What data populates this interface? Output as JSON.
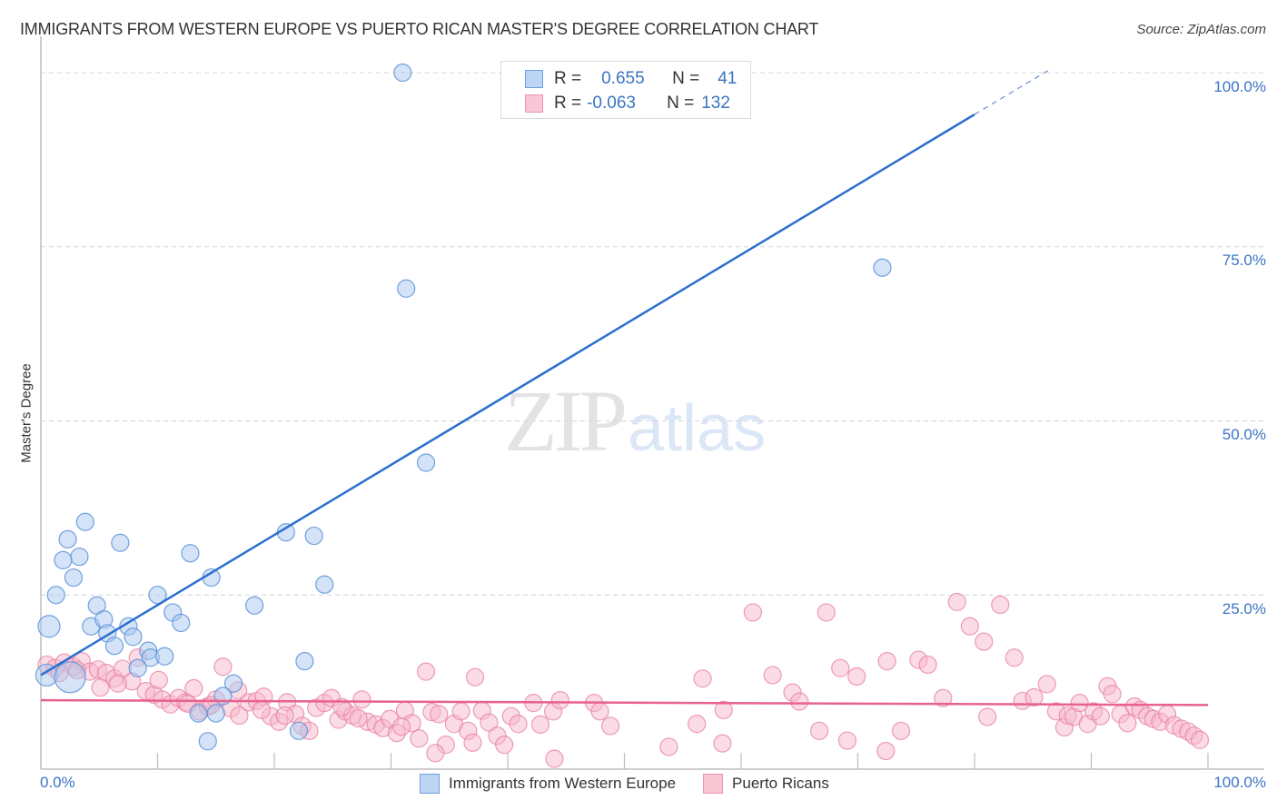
{
  "header": {
    "title": "IMMIGRANTS FROM WESTERN EUROPE VS PUERTO RICAN MASTER'S DEGREE CORRELATION CHART",
    "source": "Source: ZipAtlas.com"
  },
  "watermark": {
    "zip": "ZIP",
    "atlas": "atlas"
  },
  "legend": {
    "series1": {
      "r_label": "R =",
      "r_value": "0.655",
      "n_label": "N =",
      "n_value": "41"
    },
    "series2": {
      "r_label": "R =",
      "r_value": "-0.063",
      "n_label": "N =",
      "n_value": "132"
    }
  },
  "axes": {
    "ylabel": "Master's Degree",
    "yticks": [
      "100.0%",
      "75.0%",
      "50.0%",
      "25.0%"
    ],
    "xtick_left": "0.0%",
    "xtick_right": "100.0%"
  },
  "bottom_legend": {
    "series1": "Immigrants from Western Europe",
    "series2": "Puerto Ricans"
  },
  "colors": {
    "blue_fill": "#a9c8ef",
    "blue_stroke": "#5b93d8",
    "blue_line": "#2a6fd0",
    "pink_fill": "#f7b8cb",
    "pink_stroke": "#e77fa0",
    "pink_line": "#e8628f",
    "tick_text": "#3a75c4"
  },
  "chart_data": {
    "type": "scatter",
    "title": "IMMIGRANTS FROM WESTERN EUROPE VS PUERTO RICAN MASTER'S DEGREE CORRELATION CHART",
    "xlabel": "",
    "ylabel": "Master's Degree",
    "xlim": [
      0,
      100
    ],
    "ylim": [
      0,
      100
    ],
    "x_ticks": [
      "0.0%",
      "100.0%"
    ],
    "y_ticks": [
      "25.0%",
      "50.0%",
      "75.0%",
      "100.0%"
    ],
    "grid": true,
    "legend_position": "top-center",
    "series": [
      {
        "name": "Immigrants from Western Europe",
        "color": "#a9c8ef",
        "R": 0.655,
        "N": 41,
        "trendline": {
          "x": [
            0,
            80
          ],
          "y": [
            13.5,
            94
          ],
          "dashed_extension": {
            "x": [
              80,
              86.5
            ],
            "y": [
              94,
              100.5
            ]
          }
        },
        "points": [
          [
            31,
            100
          ],
          [
            31.3,
            69
          ],
          [
            72.1,
            72
          ],
          [
            33,
            44
          ],
          [
            3.8,
            35.5
          ],
          [
            2.3,
            33
          ],
          [
            6.8,
            32.5
          ],
          [
            3.3,
            30.5
          ],
          [
            1.9,
            30
          ],
          [
            12.8,
            31
          ],
          [
            21,
            34
          ],
          [
            23.4,
            33.5
          ],
          [
            2.8,
            27.5
          ],
          [
            14.6,
            27.5
          ],
          [
            24.3,
            26.5
          ],
          [
            1.3,
            25
          ],
          [
            4.8,
            23.5
          ],
          [
            10,
            25
          ],
          [
            18.3,
            23.5
          ],
          [
            0.7,
            20.5
          ],
          [
            4.3,
            20.5
          ],
          [
            5.4,
            21.5
          ],
          [
            7.5,
            20.5
          ],
          [
            11.3,
            22.5
          ],
          [
            12,
            21
          ],
          [
            5.7,
            19.5
          ],
          [
            7.9,
            19
          ],
          [
            6.3,
            17.7
          ],
          [
            9.2,
            17
          ],
          [
            9.4,
            16
          ],
          [
            10.6,
            16.2
          ],
          [
            22.6,
            15.5
          ],
          [
            8.3,
            14.5
          ],
          [
            0.5,
            13.5
          ],
          [
            16.5,
            12.3
          ],
          [
            15.6,
            10.5
          ],
          [
            13.5,
            8
          ],
          [
            15,
            8
          ],
          [
            14.3,
            4
          ],
          [
            22.1,
            5.5
          ],
          [
            2.5,
            13.2
          ]
        ]
      },
      {
        "name": "Puerto Ricans",
        "color": "#f7b8cb",
        "R": -0.063,
        "N": 132,
        "trendline": {
          "x": [
            0,
            100
          ],
          "y": [
            9.9,
            9.2
          ]
        },
        "points": [
          [
            0.5,
            15
          ],
          [
            1.2,
            14.5
          ],
          [
            2,
            15.3
          ],
          [
            2.8,
            14.7
          ],
          [
            3.5,
            15.5
          ],
          [
            4.2,
            14
          ],
          [
            4.9,
            14.3
          ],
          [
            5.6,
            13.8
          ],
          [
            6.3,
            13
          ],
          [
            7,
            14.4
          ],
          [
            7.8,
            12.6
          ],
          [
            8.3,
            16
          ],
          [
            9,
            11.2
          ],
          [
            9.7,
            10.7
          ],
          [
            10.4,
            10
          ],
          [
            11.1,
            9.3
          ],
          [
            11.8,
            10.2
          ],
          [
            12.4,
            9.6
          ],
          [
            13.1,
            11.6
          ],
          [
            13.6,
            8.3
          ],
          [
            14.3,
            9
          ],
          [
            15,
            10
          ],
          [
            15.6,
            14.7
          ],
          [
            16.3,
            8.7
          ],
          [
            17,
            7.7
          ],
          [
            17.8,
            9.6
          ],
          [
            18.5,
            9.8
          ],
          [
            19.1,
            10.4
          ],
          [
            19.7,
            7.6
          ],
          [
            20.4,
            6.8
          ],
          [
            21.1,
            9.6
          ],
          [
            21.8,
            7.9
          ],
          [
            22.4,
            6.2
          ],
          [
            23,
            5.5
          ],
          [
            23.6,
            8.8
          ],
          [
            24.3,
            9.5
          ],
          [
            24.9,
            10.2
          ],
          [
            25.5,
            7.1
          ],
          [
            26.1,
            8.3
          ],
          [
            26.7,
            7.7
          ],
          [
            27.5,
            10
          ],
          [
            28,
            6.8
          ],
          [
            28.7,
            6.4
          ],
          [
            29.3,
            5.9
          ],
          [
            29.9,
            7.2
          ],
          [
            30.5,
            5.2
          ],
          [
            31.2,
            8.4
          ],
          [
            31.8,
            6.6
          ],
          [
            32.4,
            4.4
          ],
          [
            33,
            14
          ],
          [
            33.5,
            8.2
          ],
          [
            34.1,
            7.9
          ],
          [
            34.7,
            3.5
          ],
          [
            35.4,
            6.5
          ],
          [
            36,
            8.3
          ],
          [
            36.6,
            5.5
          ],
          [
            37.2,
            13.2
          ],
          [
            37.8,
            8.4
          ],
          [
            38.4,
            6.7
          ],
          [
            39.1,
            4.8
          ],
          [
            39.7,
            3.5
          ],
          [
            40.3,
            7.6
          ],
          [
            40.9,
            6.5
          ],
          [
            42.2,
            9.5
          ],
          [
            42.8,
            6.4
          ],
          [
            43.9,
            8.3
          ],
          [
            44.5,
            9.9
          ],
          [
            47.4,
            9.5
          ],
          [
            47.9,
            8.3
          ],
          [
            48.8,
            6.2
          ],
          [
            56.2,
            6.5
          ],
          [
            56.7,
            13
          ],
          [
            58.5,
            8.5
          ],
          [
            61,
            22.5
          ],
          [
            62.7,
            13.5
          ],
          [
            64.4,
            11
          ],
          [
            65,
            9.7
          ],
          [
            66.7,
            5.5
          ],
          [
            67.3,
            22.5
          ],
          [
            68.5,
            14.5
          ],
          [
            69.9,
            13.3
          ],
          [
            72.5,
            15.5
          ],
          [
            73.7,
            5.5
          ],
          [
            75.2,
            15.7
          ],
          [
            76,
            15
          ],
          [
            77.3,
            10.2
          ],
          [
            78.5,
            24
          ],
          [
            79.6,
            20.5
          ],
          [
            80.8,
            18.3
          ],
          [
            82.2,
            23.6
          ],
          [
            83.4,
            16
          ],
          [
            84.1,
            9.8
          ],
          [
            85.1,
            10.3
          ],
          [
            86.2,
            12.2
          ],
          [
            87,
            8.3
          ],
          [
            87.7,
            6
          ],
          [
            88,
            7.7
          ],
          [
            88.5,
            7.5
          ],
          [
            89,
            9.5
          ],
          [
            89.7,
            6.5
          ],
          [
            90.2,
            8.3
          ],
          [
            90.8,
            7.6
          ],
          [
            91.4,
            11.9
          ],
          [
            91.8,
            10.8
          ],
          [
            92.5,
            7.9
          ],
          [
            93.1,
            6.6
          ],
          [
            93.7,
            9
          ],
          [
            94.2,
            8.5
          ],
          [
            94.8,
            7.6
          ],
          [
            95.3,
            7.2
          ],
          [
            95.9,
            6.8
          ],
          [
            96.5,
            7.9
          ],
          [
            97.1,
            6.3
          ],
          [
            97.7,
            5.8
          ],
          [
            98.3,
            5.4
          ],
          [
            98.8,
            4.8
          ],
          [
            99.3,
            4.2
          ],
          [
            1.6,
            13.8
          ],
          [
            3.1,
            14.2
          ],
          [
            5.1,
            11.7
          ],
          [
            6.6,
            12.3
          ],
          [
            10.1,
            12.8
          ],
          [
            12.6,
            9.4
          ],
          [
            14.6,
            9.2
          ],
          [
            16.9,
            11.3
          ],
          [
            18.9,
            8.5
          ],
          [
            20.9,
            7.7
          ],
          [
            25.8,
            8.9
          ],
          [
            27.2,
            7.3
          ],
          [
            30.9,
            6.1
          ],
          [
            33.8,
            2.3
          ],
          [
            37,
            3.8
          ],
          [
            44,
            1.5
          ],
          [
            53.8,
            3.2
          ],
          [
            58.4,
            3.7
          ],
          [
            72.4,
            2.6
          ],
          [
            69.1,
            4.1
          ],
          [
            81.1,
            7.5
          ]
        ]
      }
    ]
  }
}
